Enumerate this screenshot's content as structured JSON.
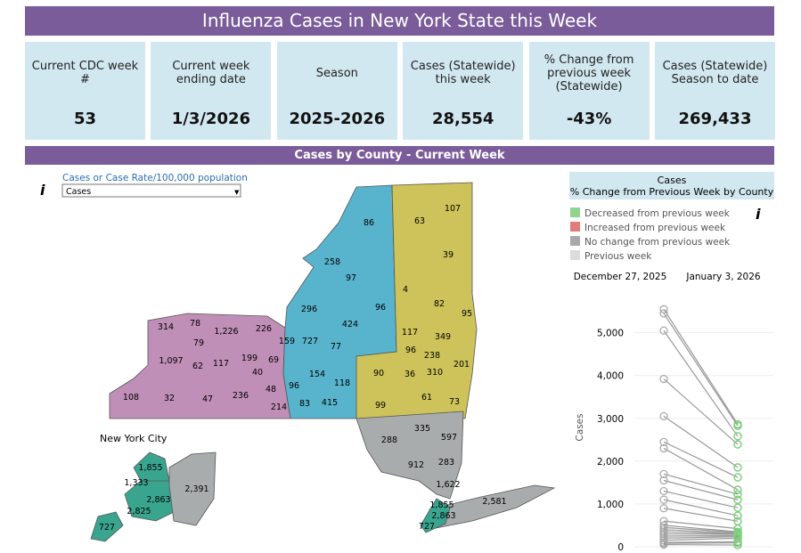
{
  "header": {
    "title": "Influenza Cases in New York State this Week"
  },
  "kpis": [
    {
      "label": "Current CDC week #",
      "value": "53"
    },
    {
      "label": "Current week ending date",
      "value": "1/3/2026"
    },
    {
      "label": "Season",
      "value": "2025-2026"
    },
    {
      "label": "Cases (Statewide) this week",
      "value": "28,554"
    },
    {
      "label": "% Change from previous week (Statewide)",
      "value": "-43%"
    },
    {
      "label": "Cases (Statewide) Season to date",
      "value": "269,433"
    }
  ],
  "section_title": "Cases by County - Current Week",
  "control": {
    "label": "Cases or Case Rate/100,000 population",
    "selected": "Cases"
  },
  "map": {
    "labels": [
      "86",
      "63",
      "107",
      "258",
      "97",
      "39",
      "4",
      "82",
      "95",
      "296",
      "727",
      "424",
      "96",
      "117",
      "349",
      "314",
      "78",
      "1,226",
      "226",
      "79",
      "159",
      "77",
      "96",
      "238",
      "201",
      "1,097",
      "62",
      "117",
      "199",
      "69",
      "40",
      "154",
      "90",
      "36",
      "310",
      "118",
      "48",
      "96",
      "61",
      "73",
      "108",
      "32",
      "47",
      "236",
      "214",
      "83",
      "415",
      "99",
      "335",
      "597",
      "288",
      "283",
      "912",
      "1,622",
      "2,581",
      "1,855",
      "2,863",
      "727"
    ],
    "nyc_title": "New York City",
    "nyc_labels": [
      "1,855",
      "1,333",
      "2,863",
      "2,391",
      "2,825",
      "727"
    ]
  },
  "legend": {
    "title": "Cases",
    "subtitle": "% Change from Previous Week by County",
    "items": [
      {
        "label": "Decreased from previous week",
        "color": "#8fd48f"
      },
      {
        "label": "Increased from previous week",
        "color": "#e07c7c"
      },
      {
        "label": "No change from previous week",
        "color": "#a9a9a9"
      },
      {
        "label": "Previous week",
        "color": "#dcdcdc"
      }
    ]
  },
  "chart_data": {
    "type": "slope",
    "categories": [
      "December 27, 2025",
      "January 3, 2026"
    ],
    "y_label": "Cases",
    "ylim": [
      0,
      5700
    ],
    "yticks": [
      0,
      {
        "value": 1000,
        "label": "1,000"
      },
      {
        "value": 2000,
        "label": "2,000"
      },
      {
        "value": 3000,
        "label": "3,000"
      },
      {
        "value": 4000,
        "label": "4,000"
      },
      {
        "value": 5000,
        "label": "5,000"
      }
    ],
    "grid": true,
    "line_color": "#999999",
    "prev_color": "#aaaaaa",
    "curr_color": "#7fcf7f",
    "lines": [
      {
        "values": [
          5550,
          2863
        ]
      },
      {
        "values": [
          5450,
          2825
        ]
      },
      {
        "values": [
          5050,
          2581
        ]
      },
      {
        "values": [
          3920,
          2391
        ]
      },
      {
        "values": [
          3050,
          1855
        ]
      },
      {
        "values": [
          2450,
          1622
        ]
      },
      {
        "values": [
          2300,
          1333
        ]
      },
      {
        "values": [
          1700,
          1226
        ]
      },
      {
        "values": [
          1550,
          1097
        ]
      },
      {
        "values": [
          1300,
          912
        ]
      },
      {
        "values": [
          1100,
          727
        ]
      },
      {
        "values": [
          900,
          597
        ]
      },
      {
        "values": [
          600,
          424
        ]
      },
      {
        "values": [
          500,
          349
        ]
      },
      {
        "values": [
          450,
          335
        ]
      },
      {
        "values": [
          400,
          310
        ]
      },
      {
        "values": [
          350,
          296
        ]
      },
      {
        "values": [
          300,
          288
        ]
      },
      {
        "values": [
          250,
          258
        ]
      },
      {
        "values": [
          200,
          236
        ]
      },
      {
        "values": [
          150,
          201
        ]
      },
      {
        "values": [
          100,
          117
        ]
      },
      {
        "values": [
          80,
          90
        ]
      },
      {
        "values": [
          50,
          40
        ]
      }
    ]
  }
}
